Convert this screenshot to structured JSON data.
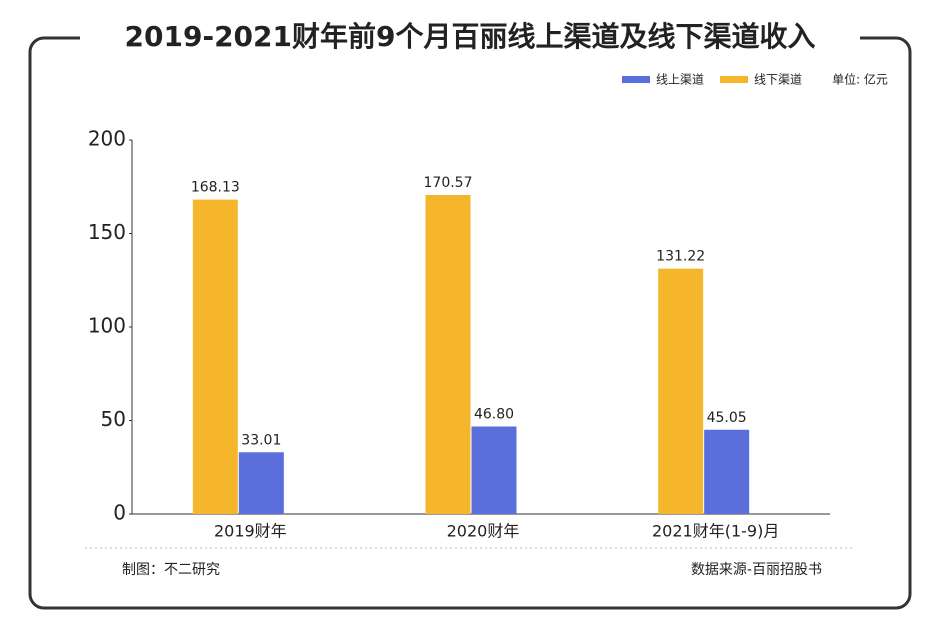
{
  "chart_data": {
    "type": "bar",
    "title": "2019-2021财年前9个月百丽线上渠道及线下渠道收入",
    "unit": "单位: 亿元",
    "categories": [
      "2019财年",
      "2020财年",
      "2021财年(1-9)月"
    ],
    "series": [
      {
        "name": "线上渠道",
        "color": "#5a6fdc",
        "values": [
          33.01,
          46.8,
          45.05
        ],
        "value_labels": [
          "33.01",
          "46.80",
          "45.05"
        ]
      },
      {
        "name": "线下渠道",
        "color": "#f5b62c",
        "values": [
          168.13,
          170.57,
          131.22
        ],
        "value_labels": [
          "168.13",
          "170.57",
          "131.22"
        ]
      }
    ],
    "ylim": [
      0,
      200
    ],
    "yticks": [
      0,
      50,
      100,
      150,
      200
    ],
    "credit": "制图：不二研究",
    "source": "数据来源-百丽招股书"
  }
}
